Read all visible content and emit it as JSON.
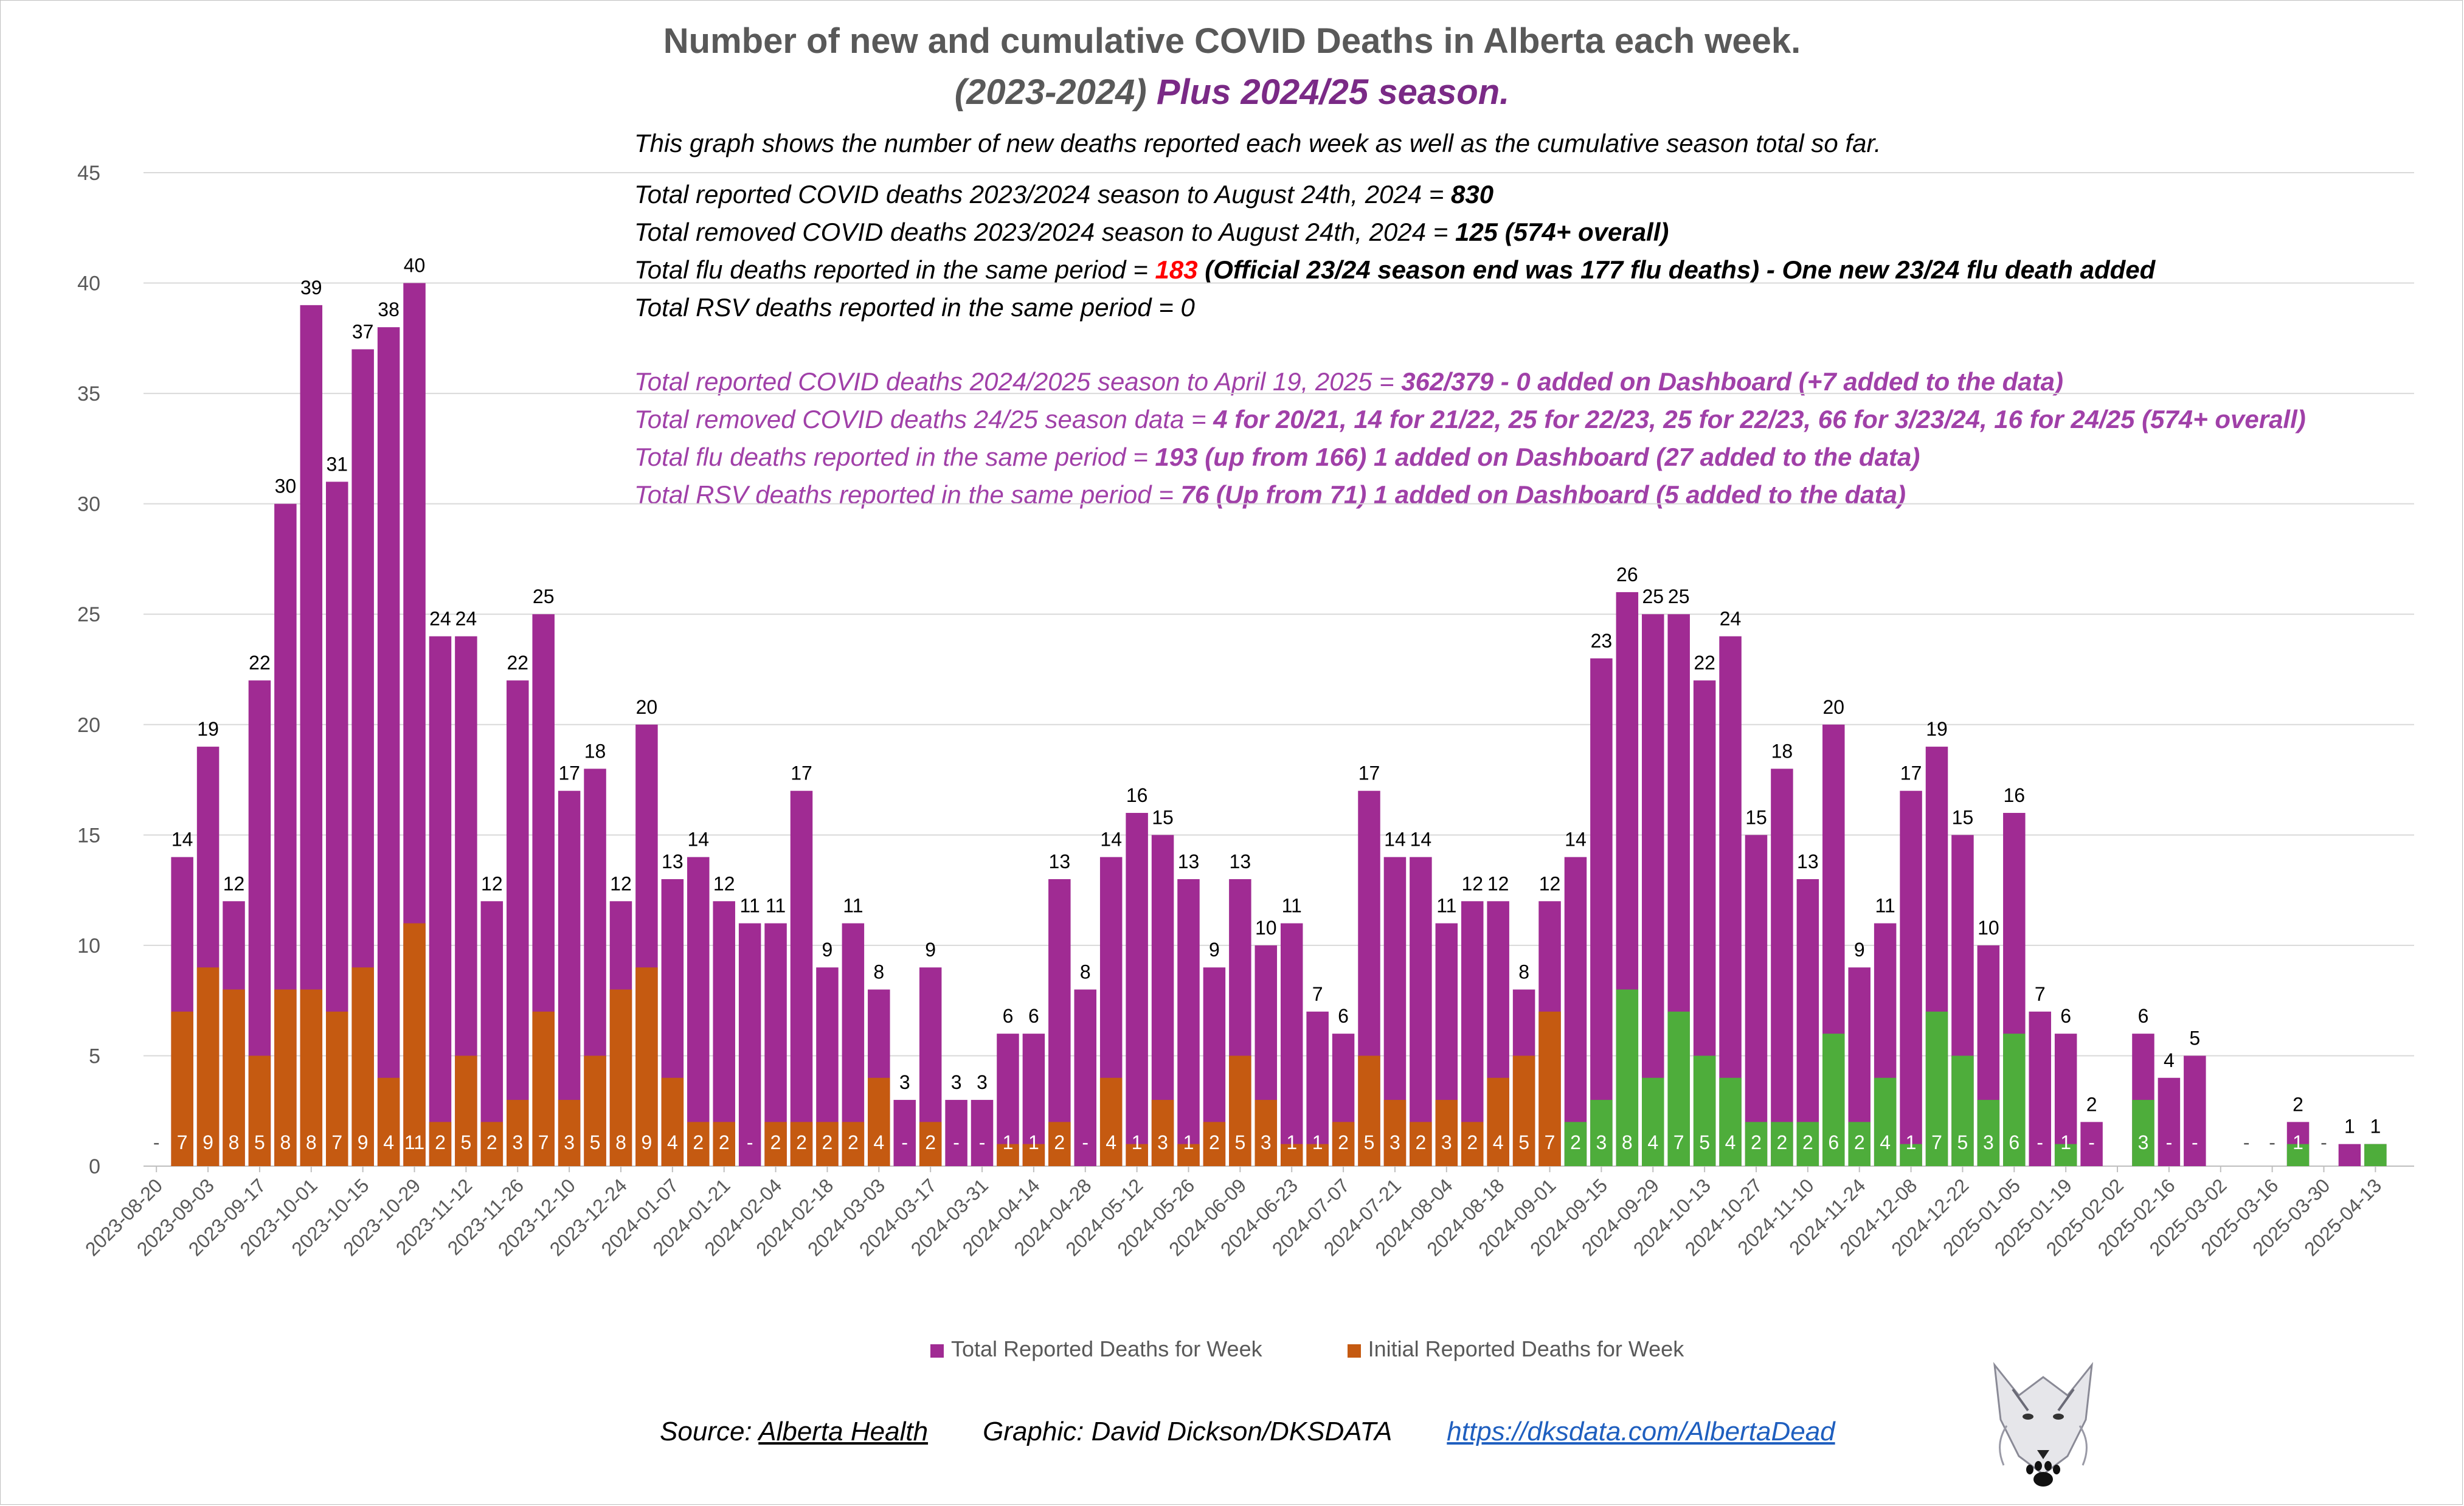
{
  "title": "Number of new and cumulative COVID Deaths in Alberta each week.",
  "subtitle_grey": "(2023-2024)",
  "subtitle_purple": "Plus 2024/25 season.",
  "notes": {
    "intro": "This graph shows the number of new deaths reported each week as well as the cumulative season total so far.",
    "n1_pre": "Total reported COVID deaths 2023/2024 season to August  24th, 2024 = ",
    "n1_val": "830",
    "n2_pre": "Total removed COVID deaths 2023/2024 season to August 24th, 2024 = ",
    "n2_val": "125 (574+ overall)",
    "n3_pre": "Total flu deaths reported in the same period = ",
    "n3_red": "183",
    "n3_post": " (Official 23/24 season end was 177 flu deaths) - One new 23/24 flu death added",
    "n4": "Total RSV deaths reported  in the same period = 0",
    "p1_pre": "Total reported COVID deaths 2024/2025 season to April 19, 2025 =  ",
    "p1_val": "362/379 - 0 added on Dashboard (+7 added to the data)",
    "p2_pre": "Total removed COVID deaths 24/25 season data =  ",
    "p2_val": "4 for 20/21, 14 for 21/22, 25 for 22/23, 25 for 22/23, 66 for 3/23/24, 16 for 24/25 (574+ overall)",
    "p3_pre": "Total flu deaths reported in the same period = ",
    "p3_val": "193 (up from 166) 1 added on Dashboard (27 added to the data)",
    "p4_pre": "Total RSV deaths reported in the same period = ",
    "p4_val": "76 (Up from 71) 1 added on Dashboard (5 added to the data)"
  },
  "footer": {
    "source_label": "Source: ",
    "source_link": "Alberta Health",
    "graphic": "Graphic: David Dickson/DKSDATA",
    "url": "https://dksdata.com/AlbertaDead"
  },
  "colors": {
    "total": "#a02b93",
    "initial_2023": "#c55a11",
    "initial_2024": "#4ead3b",
    "axis_text": "#595959",
    "grid": "#d9d9d9"
  },
  "chart_data": {
    "type": "bar",
    "stacked": "overlay",
    "ylim": [
      0,
      45
    ],
    "yticks": [
      0,
      5,
      10,
      15,
      20,
      25,
      30,
      35,
      40,
      45
    ],
    "grid": true,
    "legend_position": "bottom",
    "x_tick_labels": [
      "2023-08-20",
      "2023-09-03",
      "2023-09-17",
      "2023-10-01",
      "2023-10-15",
      "2023-10-29",
      "2023-11-12",
      "2023-11-26",
      "2023-12-10",
      "2023-12-24",
      "2024-01-07",
      "2024-01-21",
      "2024-02-04",
      "2024-02-18",
      "2024-03-03",
      "2024-03-17",
      "2024-03-31",
      "2024-04-14",
      "2024-04-28",
      "2024-05-12",
      "2024-05-26",
      "2024-06-09",
      "2024-06-23",
      "2024-07-07",
      "2024-07-21",
      "2024-08-04",
      "2024-08-18",
      "2024-09-01",
      "2024-09-15",
      "2024-09-29",
      "2024-10-13",
      "2024-10-27",
      "2024-11-10",
      "2024-11-24",
      "2024-12-08",
      "2024-12-22",
      "2025-01-05",
      "2025-01-19",
      "2025-02-02",
      "2025-02-16",
      "2025-03-02",
      "2025-03-16",
      "2025-03-30",
      "2025-04-13"
    ],
    "series": [
      {
        "name": "Total Reported Deaths for Week",
        "values": [
          0,
          14,
          19,
          12,
          22,
          30,
          39,
          31,
          37,
          38,
          40,
          24,
          24,
          12,
          22,
          25,
          17,
          18,
          12,
          20,
          13,
          14,
          12,
          11,
          11,
          17,
          9,
          11,
          8,
          3,
          9,
          3,
          3,
          6,
          6,
          13,
          8,
          14,
          16,
          15,
          13,
          9,
          13,
          10,
          11,
          7,
          6,
          17,
          14,
          14,
          11,
          12,
          12,
          8,
          12,
          14,
          23,
          26,
          25,
          25,
          22,
          24,
          15,
          18,
          13,
          20,
          9,
          11,
          17,
          19,
          15,
          10,
          16,
          7,
          6,
          2,
          0,
          6,
          4,
          5,
          0,
          0,
          0,
          2,
          0,
          1,
          1,
          0
        ]
      },
      {
        "name": "Initial Reported Deaths for Week",
        "values": [
          0,
          7,
          9,
          8,
          5,
          8,
          8,
          7,
          9,
          4,
          11,
          2,
          5,
          2,
          3,
          7,
          3,
          5,
          8,
          9,
          4,
          2,
          2,
          0,
          2,
          2,
          2,
          2,
          4,
          0,
          2,
          0,
          0,
          1,
          1,
          2,
          0,
          4,
          1,
          3,
          1,
          2,
          5,
          3,
          1,
          1,
          2,
          5,
          3,
          2,
          3,
          2,
          4,
          5,
          7,
          2,
          3,
          8,
          4,
          7,
          5,
          4,
          2,
          2,
          2,
          6,
          2,
          4,
          1,
          7,
          5,
          3,
          6,
          0,
          1,
          0,
          0,
          3,
          0,
          0,
          0,
          0,
          0,
          1,
          0,
          0,
          1,
          0
        ]
      }
    ],
    "initial_labels": [
      "-",
      "7",
      "9",
      "8",
      "5",
      "8",
      "8",
      "7",
      "9",
      "4",
      "11",
      "2",
      "5",
      "2",
      "3",
      "7",
      "3",
      "5",
      "8",
      "9",
      "4",
      "2",
      "2",
      "-",
      "2",
      "2",
      "2",
      "2",
      "4",
      "-",
      "2",
      "-",
      "-",
      "1",
      "1",
      "2",
      "-",
      "4",
      "1",
      "3",
      "1",
      "2",
      "5",
      "3",
      "1",
      "1",
      "2",
      "5",
      "3",
      "2",
      "3",
      "2",
      "4",
      "5",
      "7",
      "2",
      "3",
      "8",
      "4",
      "7",
      "5",
      "4",
      "2",
      "2",
      "2",
      "6",
      "2",
      "4",
      "1",
      "7",
      "5",
      "3",
      "6",
      "-",
      "1",
      "-",
      "",
      "3",
      "-",
      "-",
      "",
      "-",
      "-",
      "1",
      "-",
      "",
      "",
      ""
    ],
    "total_labels": [
      "",
      "14",
      "19",
      "12",
      "22",
      "30",
      "39",
      "31",
      "37",
      "38",
      "40",
      "24",
      "24",
      "12",
      "22",
      "25",
      "17",
      "18",
      "12",
      "20",
      "13",
      "14",
      "12",
      "11",
      "11",
      "17",
      "9",
      "11",
      "8",
      "3",
      "9",
      "3",
      "3",
      "6",
      "6",
      "13",
      "8",
      "14",
      "16",
      "15",
      "13",
      "9",
      "13",
      "10",
      "11",
      "7",
      "6",
      "17",
      "14",
      "14",
      "11",
      "12",
      "12",
      "8",
      "12",
      "14",
      "23",
      "26",
      "25",
      "25",
      "22",
      "24",
      "15",
      "18",
      "13",
      "20",
      "9",
      "11",
      "17",
      "19",
      "15",
      "10",
      "16",
      "7",
      "6",
      "2",
      "",
      "6",
      "4",
      "5",
      "",
      "",
      "",
      "2",
      "",
      "1",
      "1",
      ""
    ]
  }
}
